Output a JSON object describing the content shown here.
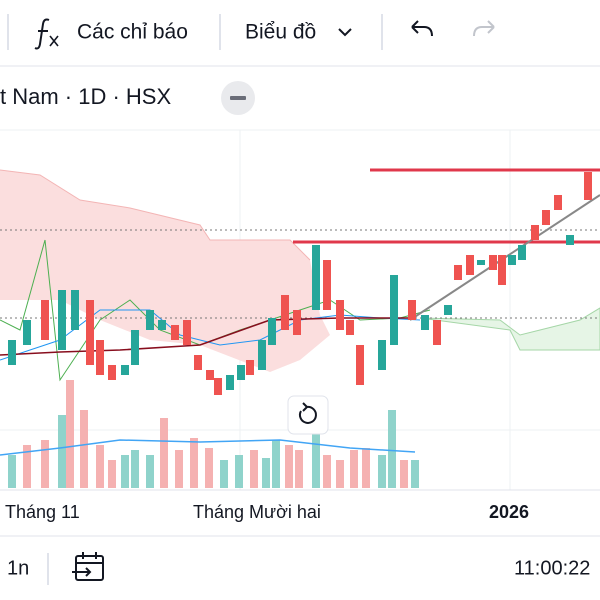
{
  "toolbar": {
    "indicators": "Các chỉ báo",
    "chart_type": "Biểu đồ"
  },
  "symbol_title": "t Nam · 1D · HSX",
  "time_axis": {
    "labels": [
      "Tháng 11",
      "Tháng Mười hai",
      "2026"
    ]
  },
  "bottom_bar": {
    "range": "1n",
    "clock": "11:00:22"
  }
}
